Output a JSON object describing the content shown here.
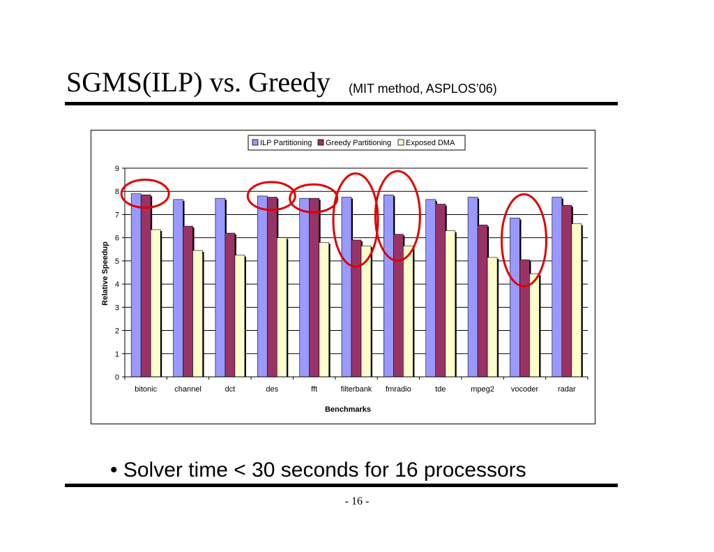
{
  "slide": {
    "title": "SGMS(ILP) vs. Greedy",
    "subtitle": "(MIT method, ASPLOS’06)",
    "bullet": "• Solver time < 30 seconds for 16 processors",
    "page_number": "- 16 -"
  },
  "colors": {
    "ilp": "#9999FF",
    "greedy": "#993366",
    "dma": "#FFFFCC",
    "highlight": "#E00000"
  },
  "chart_data": {
    "type": "bar",
    "title": "",
    "xlabel": "Benchmarks",
    "ylabel": "Relative Speedup",
    "ylim": [
      0,
      9
    ],
    "yticks": [
      "0",
      "1",
      "2",
      "3",
      "4",
      "5",
      "6",
      "7",
      "8",
      "9"
    ],
    "grid": true,
    "legend_position": "top",
    "categories": [
      "bitonic",
      "channel",
      "dct",
      "des",
      "fft",
      "filterbank",
      "fmradio",
      "tde",
      "mpeg2",
      "vocoder",
      "radar"
    ],
    "series": [
      {
        "name": "ILP Partitioning",
        "values": [
          7.9,
          7.65,
          7.7,
          7.8,
          7.7,
          7.75,
          7.85,
          7.65,
          7.75,
          6.85,
          7.75
        ]
      },
      {
        "name": "Greedy Partitioning",
        "values": [
          7.85,
          6.5,
          6.2,
          7.75,
          7.7,
          5.9,
          6.15,
          7.45,
          6.55,
          5.05,
          7.4
        ]
      },
      {
        "name": "Exposed DMA",
        "values": [
          6.35,
          5.45,
          5.25,
          6.0,
          5.8,
          5.65,
          5.65,
          6.3,
          5.15,
          4.45,
          6.6
        ]
      }
    ],
    "highlighted_categories": [
      "bitonic",
      "des",
      "fft",
      "filterbank",
      "fmradio",
      "vocoder"
    ]
  }
}
